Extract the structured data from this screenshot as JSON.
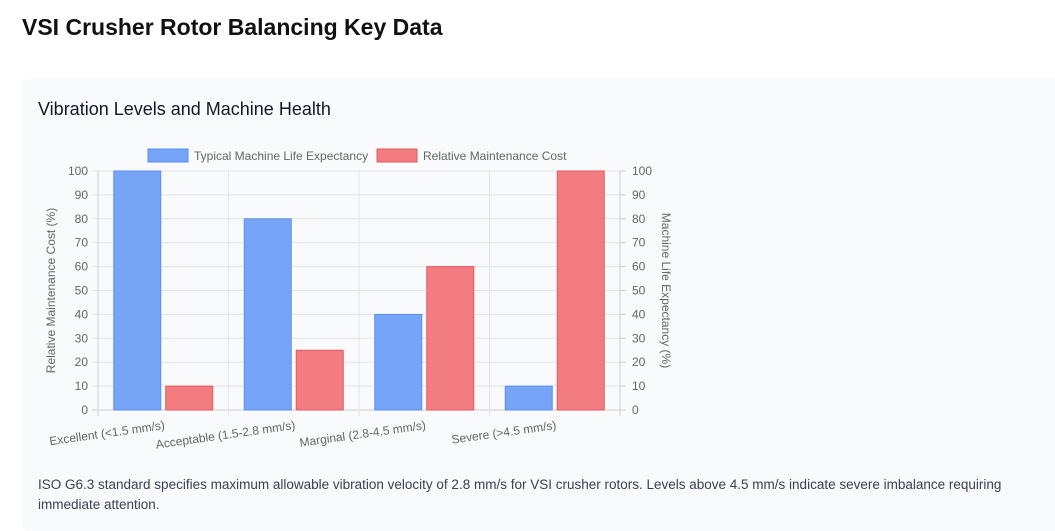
{
  "page": {
    "title": "VSI Crusher Rotor Balancing Key Data"
  },
  "card": {
    "title": "Vibration Levels and Machine Health",
    "caption": "ISO G6.3 standard specifies maximum allowable vibration velocity of 2.8 mm/s for VSI crusher rotors. Levels above 4.5 mm/s indicate severe imbalance requiring immediate attention."
  },
  "chart_data": {
    "type": "bar",
    "categories": [
      "Excellent (<1.5 mm/s)",
      "Acceptable (1.5-2.8 mm/s)",
      "Marginal (2.8-4.5 mm/s)",
      "Severe (>4.5 mm/s)"
    ],
    "series": [
      {
        "name": "Typical Machine Life Expectancy",
        "values": [
          100,
          80,
          40,
          10
        ],
        "color": "#76a5f8",
        "border": "#5b8ff0"
      },
      {
        "name": "Relative Maintenance Cost",
        "values": [
          10,
          25,
          60,
          100
        ],
        "color": "#f27c7f",
        "border": "#e35a5f"
      }
    ],
    "ylabel_left": "Relative Maintenance Cost (%)",
    "ylabel_right": "Machine Life Expectancy (%)",
    "ylim": [
      0,
      100
    ],
    "yticks": [
      0,
      10,
      20,
      30,
      40,
      50,
      60,
      70,
      80,
      90,
      100
    ],
    "legend_position": "top",
    "grid": true
  }
}
